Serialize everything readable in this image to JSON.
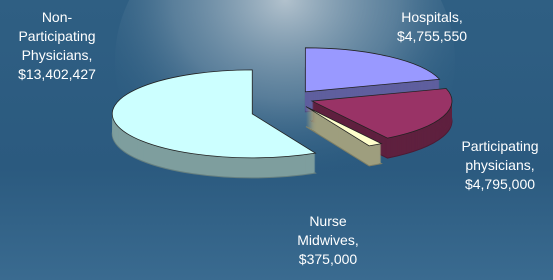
{
  "chart_data": {
    "type": "pie",
    "three_d": true,
    "categories": [
      "Hospitals,",
      "Participating physicians,",
      "Nurse Midwives,",
      "Non-Participating Physicians,"
    ],
    "values": [
      4755550,
      4795000,
      375000,
      13402427
    ],
    "value_labels": [
      "$4,755,550",
      "$4,795,000",
      "$375,000",
      "$13,402,427"
    ],
    "colors": [
      "#9999ff",
      "#993366",
      "#ffffcc",
      "#ccffff"
    ],
    "exploded": [
      true,
      true,
      true,
      true
    ]
  }
}
